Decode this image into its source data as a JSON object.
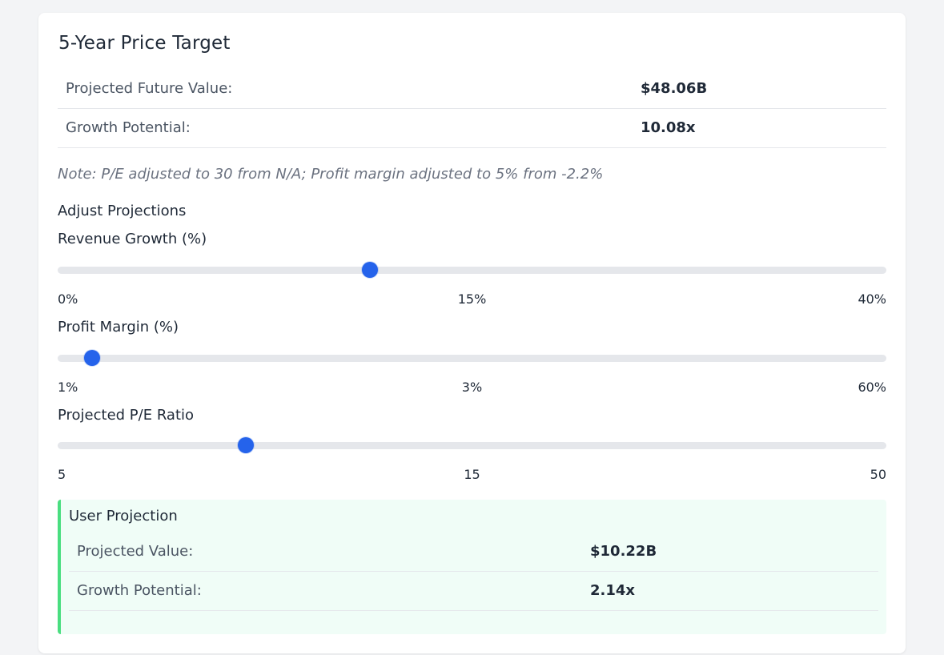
{
  "price_target": {
    "title": "5-Year Price Target",
    "rows": [
      {
        "label": "Projected Future Value:",
        "value": "$48.06B"
      },
      {
        "label": "Growth Potential:",
        "value": "10.08x"
      }
    ],
    "note": "Note: P/E adjusted to 30 from N/A; Profit margin adjusted to 5% from -2.2%"
  },
  "adjust": {
    "title": "Adjust Projections",
    "sliders": [
      {
        "label": "Revenue Growth (%)",
        "min_label": "0%",
        "mid_label": "15%",
        "max_label": "40%",
        "position_fraction": 0.377
      },
      {
        "label": "Profit Margin (%)",
        "min_label": "1%",
        "mid_label": "3%",
        "max_label": "60%",
        "position_fraction": 0.042
      },
      {
        "label": "Projected P/E Ratio",
        "min_label": "5",
        "mid_label": "15",
        "max_label": "50",
        "position_fraction": 0.227
      }
    ]
  },
  "user_projection": {
    "title": "User Projection",
    "rows": [
      {
        "label": "Projected Value:",
        "value": "$10.22B"
      },
      {
        "label": "Growth Potential:",
        "value": "2.14x"
      }
    ]
  },
  "colors": {
    "accent": "#2563eb",
    "projection_border": "#4ade80",
    "projection_bg": "#f0fdf7"
  }
}
